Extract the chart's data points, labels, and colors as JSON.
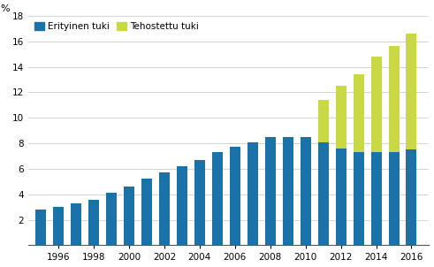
{
  "years": [
    1995,
    1996,
    1997,
    1998,
    1999,
    2000,
    2001,
    2002,
    2003,
    2004,
    2005,
    2006,
    2007,
    2008,
    2009,
    2010,
    2011,
    2012,
    2013,
    2014,
    2015,
    2016
  ],
  "erityinen_tuki": [
    2.8,
    3.0,
    3.3,
    3.6,
    4.1,
    4.6,
    5.2,
    5.7,
    6.2,
    6.7,
    7.3,
    7.7,
    8.1,
    8.5,
    8.5,
    8.5,
    8.1,
    7.6,
    7.3,
    7.3,
    7.3,
    7.5
  ],
  "tehostettu_tuki": [
    0.0,
    0.0,
    0.0,
    0.0,
    0.0,
    0.0,
    0.0,
    0.0,
    0.0,
    0.0,
    0.0,
    0.0,
    0.0,
    0.0,
    0.0,
    0.0,
    3.3,
    4.9,
    6.1,
    7.5,
    8.3,
    9.1
  ],
  "erityinen_color": "#1a72a8",
  "tehostettu_color": "#c8d945",
  "ylabel": "%",
  "ylim": [
    0,
    18
  ],
  "yticks": [
    0,
    2,
    4,
    6,
    8,
    10,
    12,
    14,
    16,
    18
  ],
  "xtick_years": [
    1996,
    1998,
    2000,
    2002,
    2004,
    2006,
    2008,
    2010,
    2012,
    2014,
    2016
  ],
  "legend_erityinen": "Erityinen tuki",
  "legend_tehostettu": "Tehostettu tuki",
  "background_color": "#ffffff",
  "grid_color": "#cccccc"
}
